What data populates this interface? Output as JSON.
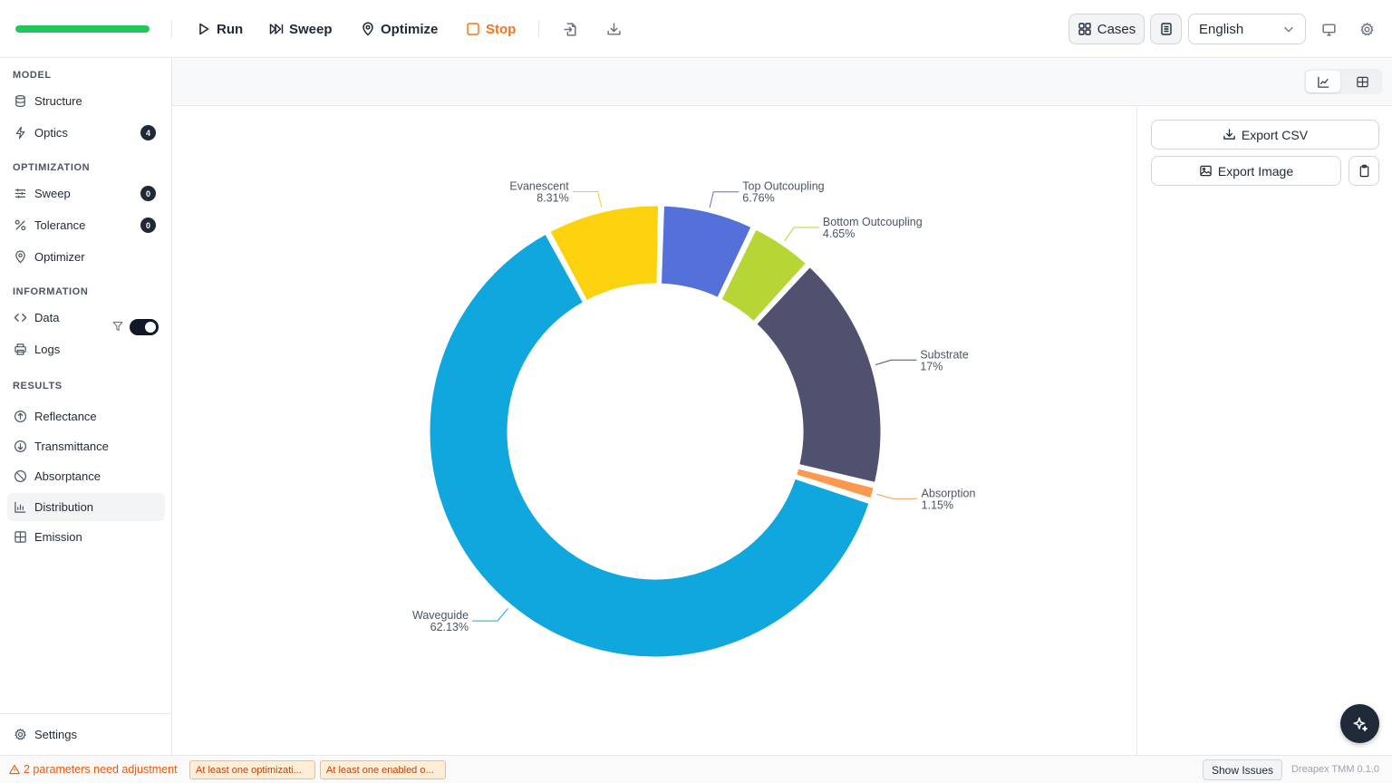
{
  "toolbar": {
    "progress": 1.0,
    "run_label": "Run",
    "sweep_label": "Sweep",
    "optimize_label": "Optimize",
    "stop_label": "Stop",
    "cases_label": "Cases",
    "language": "English"
  },
  "sidebar": {
    "model_title": "MODEL",
    "optimization_title": "OPTIMIZATION",
    "information_title": "INFORMATION",
    "results_title": "RESULTS",
    "items": {
      "structure": "Structure",
      "optics": "Optics",
      "sweep": "Sweep",
      "tolerance": "Tolerance",
      "optimizer": "Optimizer",
      "data": "Data",
      "logs": "Logs",
      "reflectance": "Reflectance",
      "transmittance": "Transmittance",
      "absorptance": "Absorptance",
      "distribution": "Distribution",
      "emission": "Emission",
      "settings": "Settings"
    },
    "badges": {
      "optics": "4",
      "sweep": "0",
      "tolerance": "0"
    },
    "results_toggle_on": true
  },
  "panel": {
    "export_csv": "Export CSV",
    "export_image": "Export Image"
  },
  "status": {
    "warning": "2 parameters need adjustment",
    "tag1": "At least one optimizati...",
    "tag2": "At least one enabled o...",
    "show_issues": "Show Issues",
    "version": "Dreapex TMM 0.1.0"
  },
  "colors": {
    "progress": "#22c55e",
    "stop": "#f97316",
    "warning": "#ea580c"
  },
  "chart_data": {
    "type": "pie",
    "variant": "donut",
    "slices": [
      {
        "label": "Top Outcoupling",
        "value_label": "6.76%",
        "value": 6.76,
        "color": "#5470d9"
      },
      {
        "label": "Bottom Outcoupling",
        "value_label": "4.65%",
        "value": 4.65,
        "color": "#b5d634"
      },
      {
        "label": "Substrate",
        "value_label": "17%",
        "value": 17,
        "color": "#4f516e"
      },
      {
        "label": "Absorption",
        "value_label": "1.15%",
        "value": 1.15,
        "color": "#fb9a4e"
      },
      {
        "label": "Waveguide",
        "value_label": "62.13%",
        "value": 62.13,
        "color": "#10a6de"
      },
      {
        "label": "Evanescent",
        "value_label": "8.31%",
        "value": 8.31,
        "color": "#fcd10d"
      }
    ]
  }
}
